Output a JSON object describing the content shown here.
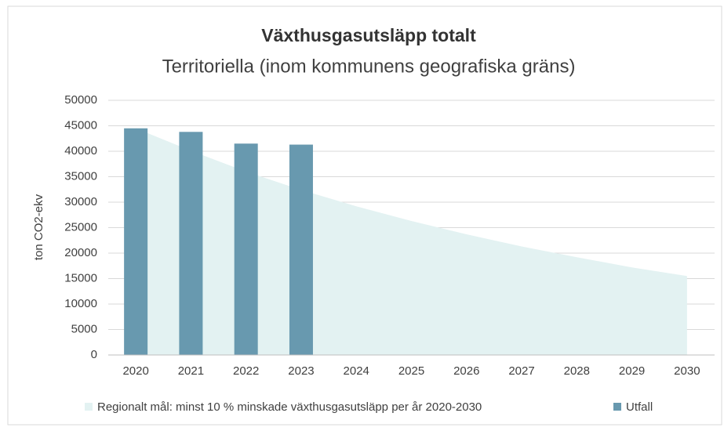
{
  "chart_data": {
    "type": "bar",
    "title": "Växthusgasutsläpp totalt",
    "subtitle": "Territoriella (inom kommunens geografiska gräns)",
    "y_label": "ton CO2-ekv",
    "categories": [
      "2020",
      "2021",
      "2022",
      "2023",
      "2024",
      "2025",
      "2026",
      "2027",
      "2028",
      "2029",
      "2030"
    ],
    "series": [
      {
        "name": "Regionalt mål: minst 10 % minskade växthusgasutsläpp per år 2020-2030",
        "type": "area",
        "color": "#e3f2f2",
        "values": [
          44500,
          40100,
          36000,
          32400,
          29200,
          26300,
          23700,
          21300,
          19200,
          17200,
          15500
        ]
      },
      {
        "name": "Utfall",
        "type": "bar",
        "color": "#6899af",
        "values": [
          44500,
          43800,
          41500,
          41300,
          null,
          null,
          null,
          null,
          null,
          null,
          null
        ]
      }
    ],
    "ylim": [
      0,
      50000
    ],
    "yticks": [
      0,
      5000,
      10000,
      15000,
      20000,
      25000,
      30000,
      35000,
      40000,
      45000,
      50000
    ],
    "grid": true,
    "legend": "bottom"
  }
}
